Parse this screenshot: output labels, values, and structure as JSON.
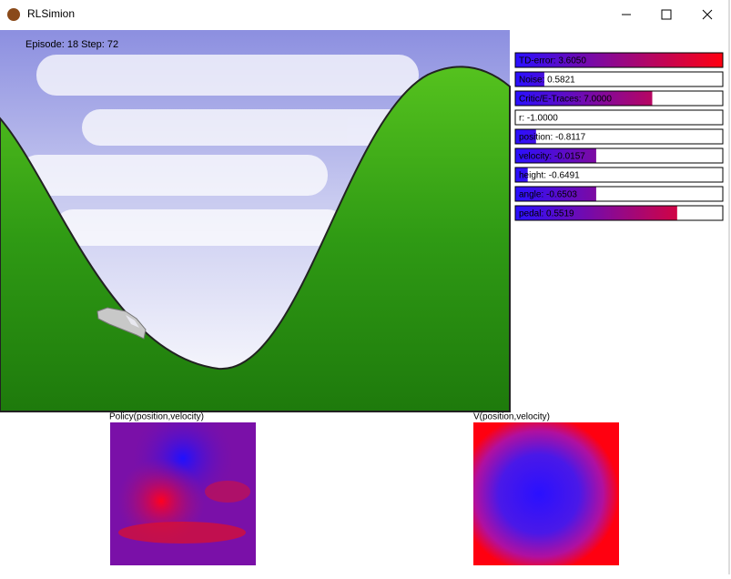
{
  "window": {
    "title": "RLSimion"
  },
  "hud": {
    "episode_text": "Episode: 18 Step: 72"
  },
  "stats": [
    {
      "label": "TD-error: 3.6050",
      "fill": 1.0
    },
    {
      "label": "Noise: 0.5821",
      "fill": 0.14
    },
    {
      "label": "Critic/E-Traces: 7.0000",
      "fill": 0.66
    },
    {
      "label": "r: -1.0000",
      "fill": 0
    },
    {
      "label": "position: -0.8117",
      "fill": 0.1
    },
    {
      "label": "velocity: -0.0157",
      "fill": 0.39
    },
    {
      "label": "height: -0.6491",
      "fill": 0.06
    },
    {
      "label": "angle: -0.6503",
      "fill": 0.39
    },
    {
      "label": "pedal: 0.5519",
      "fill": 0.78
    }
  ],
  "plots": [
    {
      "title": "Policy(position,velocity)"
    },
    {
      "title": "V(position,velocity)"
    }
  ]
}
